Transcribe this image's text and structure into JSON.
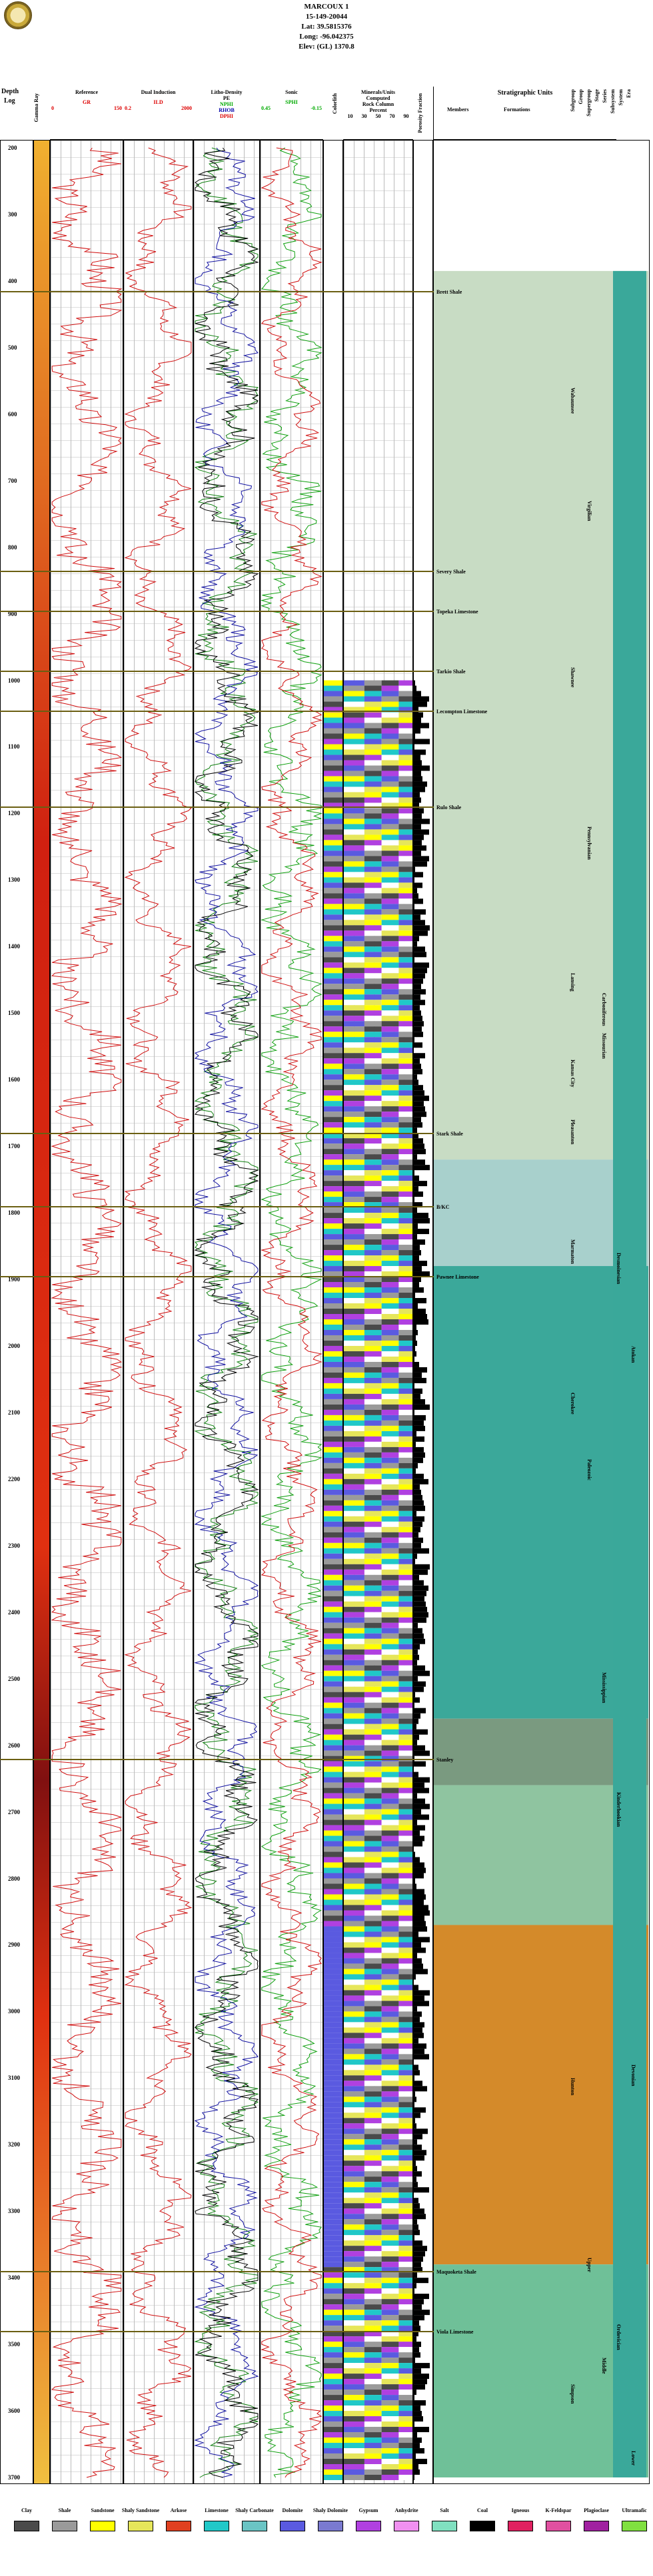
{
  "header": {
    "well_name": "MARCOUX 1",
    "api": "15-149-20044",
    "lat": "Lat: 39.5815376",
    "long": "Long: -96.042375",
    "elev": "Elev: (GL) 1370.8"
  },
  "columns": {
    "depth": "Depth",
    "log": "Log",
    "gamma_ray": "Gamma Ray",
    "reference": "Reference",
    "ref_curve": "GR",
    "ref_min": "0",
    "ref_max": "150",
    "dual_induction": "Dual Induction",
    "ild": "ILD",
    "ild_min": "0.2",
    "ild_max": "2000",
    "litho_density": "Litho-Density",
    "pe": "PE",
    "nphi": "NPHI",
    "rhob": "RHOB",
    "dphi": "DPHI",
    "pe_min": "0",
    "pe_max": "6",
    "nphi_min": "0.45",
    "nphi_max": "-0.15",
    "rhob_min": "2",
    "rhob_max": "3",
    "sonic": "Sonic",
    "sphi": "SPHI",
    "sonic_min": "0.45",
    "sonic_max": "-0.15",
    "colorlith": "Colorlith",
    "mineral_units": "Minerals/Units",
    "computed": "Computed",
    "rock_column": "Rock Column",
    "percent": "Percent",
    "pct_ticks": [
      "10",
      "30",
      "50",
      "70",
      "90"
    ],
    "porosity_fraction": "Porosity Fraction",
    "por_min": "0",
    "por_max": "0.5",
    "strat_units": "Stratigraphic Units",
    "members": "Members",
    "formations": "Formations",
    "hier": [
      "Subgroup",
      "Group",
      "Supergroup",
      "Stage",
      "Series",
      "Subsystem",
      "System",
      "Era"
    ]
  },
  "depth_ticks": [
    "200",
    "300",
    "400",
    "500",
    "600",
    "700",
    "800",
    "900",
    "1000",
    "1100",
    "1200",
    "1300",
    "1400",
    "1500",
    "1600",
    "1700",
    "1800",
    "1900",
    "2000",
    "2100",
    "2200",
    "2300",
    "2400",
    "2500",
    "2600",
    "2700",
    "2800",
    "2900",
    "3000",
    "3100",
    "3200",
    "3300",
    "3400",
    "3500",
    "3600",
    "3700"
  ],
  "tops": [
    {
      "depth": 415,
      "member": "Brett Shale"
    },
    {
      "depth": 835,
      "member": "Severy Shale"
    },
    {
      "depth": 895,
      "member": "Topeka Limestone"
    },
    {
      "depth": 985,
      "member": "Tarkio Shale"
    },
    {
      "depth": 1045,
      "member": "Lecompton Limestone"
    },
    {
      "depth": 1190,
      "member": "Rulo Shale"
    },
    {
      "depth": 1680,
      "member": "Stark Shale"
    },
    {
      "depth": 1790,
      "member": "B/KC"
    },
    {
      "depth": 1895,
      "member": "Pawnee Limestone"
    },
    {
      "depth": 2620,
      "member": "Stanley"
    },
    {
      "depth": 3390,
      "member": "Maquoketa Shale"
    },
    {
      "depth": 3480,
      "member": "Viola Limestone"
    }
  ],
  "formations": [
    {
      "name": "Wabaunsee",
      "depth": 590
    },
    {
      "name": "Shawnee",
      "depth": 1010
    },
    {
      "name": "Lansing",
      "depth": 1470
    },
    {
      "name": "Kansas City",
      "depth": 1600
    },
    {
      "name": "Pleasanton",
      "depth": 1690
    },
    {
      "name": "Marmaton",
      "depth": 1870
    },
    {
      "name": "Cherokee",
      "depth": 2100
    },
    {
      "name": "Hunton",
      "depth": 3130
    },
    {
      "name": "Simpson",
      "depth": 3590
    }
  ],
  "units_right": [
    {
      "name": "Virgilian",
      "depth": 760
    },
    {
      "name": "Missourian",
      "depth": 1560
    },
    {
      "name": "Desmoinesian",
      "depth": 1890
    },
    {
      "name": "Atokan",
      "depth": 2030
    },
    {
      "name": "Pennsylvanian",
      "depth": 1250
    },
    {
      "name": "Mississippian",
      "depth": 2520
    },
    {
      "name": "Kinderhookian",
      "depth": 2700
    },
    {
      "name": "Devonian",
      "depth": 3110
    },
    {
      "name": "Upper",
      "depth": 3400
    },
    {
      "name": "Middle",
      "depth": 3550
    },
    {
      "name": "Ordovician",
      "depth": 3500
    },
    {
      "name": "Lower",
      "depth": 3690
    },
    {
      "name": "Paleozoic",
      "depth": 2200
    },
    {
      "name": "Carboniferous",
      "depth": 1500
    }
  ],
  "legend": [
    {
      "label": "Clay",
      "color": "#4a4a4a"
    },
    {
      "label": "Shale",
      "color": "#9a9a9a"
    },
    {
      "label": "Sandstone",
      "color": "#ffff00"
    },
    {
      "label": "Shaly Sandstone",
      "color": "#e6e65a"
    },
    {
      "label": "Arkose",
      "color": "#e04020"
    },
    {
      "label": "Limestone",
      "color": "#20c8c8"
    },
    {
      "label": "Shaly Carbonate",
      "color": "#6ac4c4"
    },
    {
      "label": "Dolomite",
      "color": "#5a5ae0"
    },
    {
      "label": "Shaly Dolomite",
      "color": "#7a7ad0"
    },
    {
      "label": "Gypsum",
      "color": "#b040e0"
    },
    {
      "label": "Anhydrite",
      "color": "#f090f0"
    },
    {
      "label": "Salt",
      "color": "#80e0c0"
    },
    {
      "label": "Coal",
      "color": "#000000"
    },
    {
      "label": "Igneous",
      "color": "#e02060"
    },
    {
      "label": "K-Feldspar",
      "color": "#e050a0"
    },
    {
      "label": "Plagioclase",
      "color": "#a020a0"
    },
    {
      "label": "Ultramafic",
      "color": "#80e040"
    }
  ]
}
